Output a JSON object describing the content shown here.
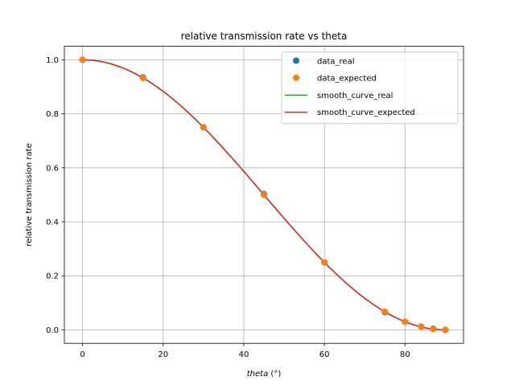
{
  "chart_data": {
    "type": "scatter",
    "title": "relative transmission rate vs theta",
    "xlabel_italic": "theta",
    "xlabel_unit": " (°)",
    "ylabel": "relative transmission rate",
    "xlim": [
      -4.5,
      94.5
    ],
    "ylim": [
      -0.05,
      1.05
    ],
    "xticks": [
      0,
      20,
      40,
      60,
      80
    ],
    "yticks": [
      0.0,
      0.2,
      0.4,
      0.6,
      0.8,
      1.0
    ],
    "xtick_labels": [
      "0",
      "20",
      "40",
      "60",
      "80"
    ],
    "ytick_labels": [
      "0.0",
      "0.2",
      "0.4",
      "0.6",
      "0.8",
      "1.0"
    ],
    "grid": true,
    "legend_position": "top-right",
    "series": [
      {
        "name": "data_real",
        "kind": "points",
        "color": "#1f77b4",
        "x": [
          0,
          15,
          30,
          45,
          60,
          75,
          80,
          84,
          87,
          90
        ],
        "y": [
          1.0,
          0.935,
          0.75,
          0.503,
          0.25,
          0.065,
          0.03,
          0.012,
          0.004,
          0.0
        ]
      },
      {
        "name": "data_expected",
        "kind": "points",
        "color": "#ff7f0e",
        "x": [
          0,
          15,
          30,
          45,
          60,
          75,
          80,
          84,
          87,
          90
        ],
        "y": [
          1.0,
          0.933,
          0.75,
          0.5,
          0.25,
          0.067,
          0.03,
          0.011,
          0.003,
          0.0
        ]
      },
      {
        "name": "smooth_curve_real",
        "kind": "line",
        "color": "#2ca02c",
        "curve": "cos2"
      },
      {
        "name": "smooth_curve_expected",
        "kind": "line",
        "color": "#d62728",
        "curve": "cos2"
      }
    ]
  }
}
